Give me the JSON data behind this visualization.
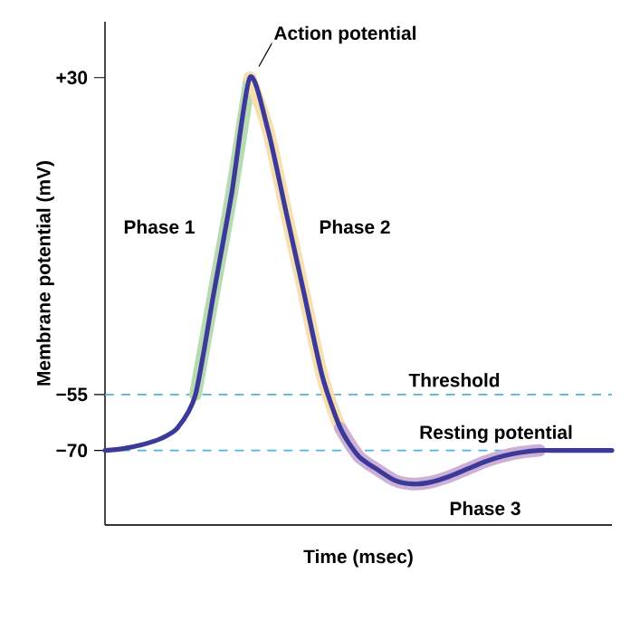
{
  "chart_data": {
    "type": "line",
    "xlabel": "Time (msec)",
    "ylabel": "Membrane potential (mV)",
    "categories": [
      null,
      null,
      null,
      null,
      null,
      null,
      null,
      null,
      null,
      null,
      null,
      null,
      null,
      null,
      null,
      null,
      null,
      null,
      null,
      null,
      null,
      null,
      null,
      null,
      null,
      null,
      null,
      null,
      null
    ],
    "series": [
      {
        "color": "#b8dab3",
        "values": [
          null,
          null,
          null,
          null,
          null,
          -55,
          -28,
          -1,
          30,
          null,
          null,
          null,
          null,
          null,
          null,
          null,
          null,
          null,
          null,
          null,
          null,
          null,
          null,
          null,
          null,
          null,
          null,
          null,
          null
        ]
      },
      {
        "color": "#f6dfb0",
        "values": [
          null,
          null,
          null,
          null,
          null,
          null,
          null,
          null,
          30,
          16,
          -6,
          -28,
          -50,
          -64,
          -71.5,
          null,
          null,
          null,
          null,
          null,
          null,
          null,
          null,
          null,
          null,
          null,
          null,
          null,
          null
        ]
      },
      {
        "color": "#cdb0d6",
        "values": [
          null,
          null,
          null,
          null,
          null,
          null,
          null,
          null,
          null,
          null,
          null,
          null,
          null,
          -64,
          -71.5,
          -75,
          -78,
          -79,
          -78.5,
          -77,
          -75,
          -73,
          -71.5,
          -70.5,
          -70,
          null,
          null,
          null,
          null
        ]
      },
      {
        "color": "#3b3a9a",
        "values": [
          -70,
          -69.5,
          -68.5,
          -67,
          -64,
          -55,
          -28,
          -1,
          30,
          16,
          -6,
          -28,
          -50,
          -64,
          -71.5,
          -75,
          -78,
          -79,
          -78.5,
          -77,
          -75,
          -73,
          -71.5,
          -70.5,
          -70,
          -70,
          -70,
          -70,
          -70
        ]
      }
    ],
    "ylim": [
      -90,
      45
    ],
    "yticks": [
      {
        "value": -70,
        "label": "−70"
      },
      {
        "value": -55,
        "label": "−55"
      },
      {
        "value": 30,
        "label": "+30"
      }
    ],
    "tick_labels": "y",
    "grid": false,
    "ref_lines": [
      {
        "axis": "y",
        "value": -55,
        "label": "Threshold",
        "color": "#4fb3e0",
        "line_style": "dashed"
      },
      {
        "axis": "y",
        "value": -70,
        "label": "Resting potential",
        "color": "#4fb3e0",
        "line_style": "dashed"
      }
    ],
    "annotations": [
      "Action potential",
      "Phase 1",
      "Phase 2",
      "Phase 3"
    ]
  }
}
